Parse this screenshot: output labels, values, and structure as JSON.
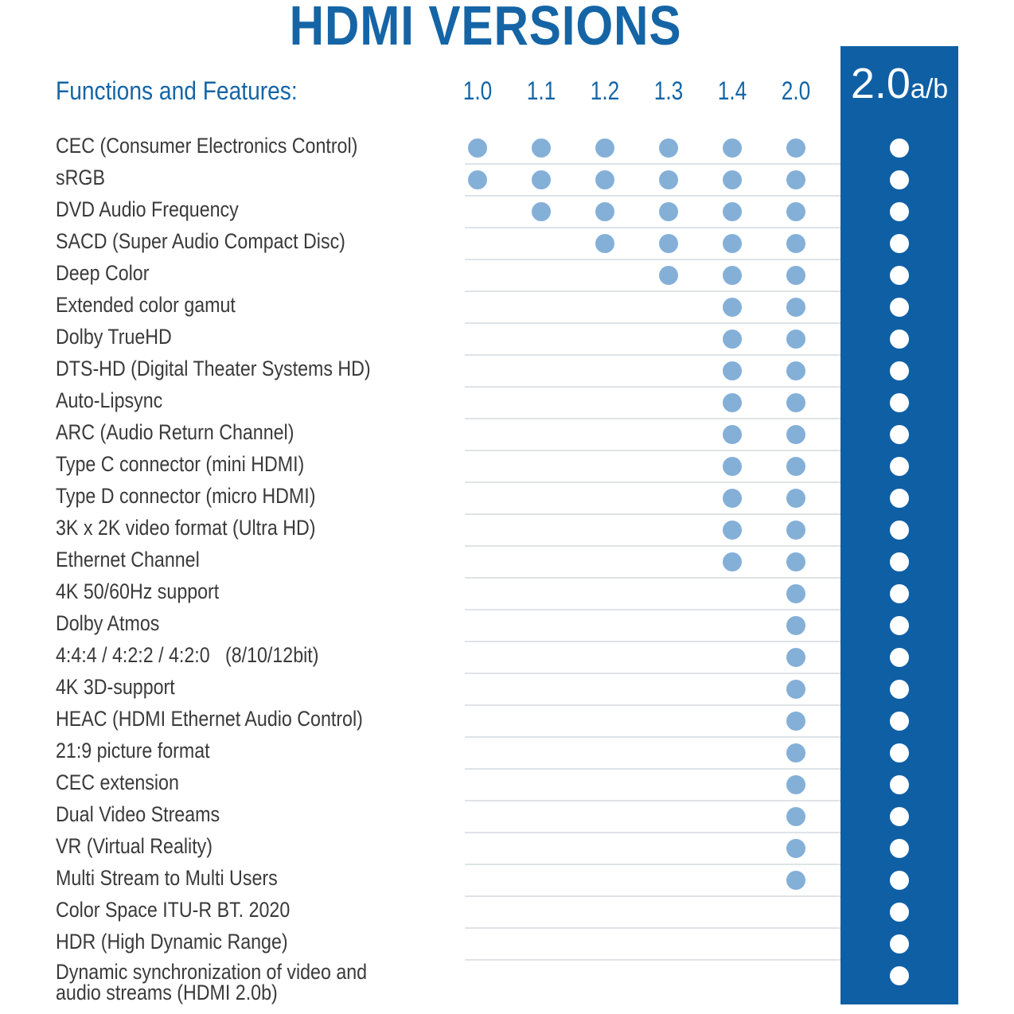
{
  "title": "HDMI VERSIONS",
  "chart_data": {
    "type": "table",
    "row_header": "Functions and Features:",
    "columns": [
      "1.0",
      "1.1",
      "1.2",
      "1.3",
      "1.4",
      "2.0",
      "2.0a/b"
    ],
    "highlight_column": {
      "main": "2.0",
      "suffix": "a/b"
    },
    "colors": {
      "accent": "#1565a6",
      "highlight_bg": "#0f5fa5",
      "dot": "#84b0d8",
      "dot_highlight": "#ffffff"
    },
    "rows": [
      {
        "feature": "CEC (Consumer Electronics Control)",
        "since": "1.0"
      },
      {
        "feature": "sRGB",
        "since": "1.0"
      },
      {
        "feature": "DVD Audio Frequency",
        "since": "1.1"
      },
      {
        "feature": "SACD (Super Audio Compact Disc)",
        "since": "1.2"
      },
      {
        "feature": "Deep Color",
        "since": "1.3"
      },
      {
        "feature": "Extended color gamut",
        "since": "1.4"
      },
      {
        "feature": "Dolby TrueHD",
        "since": "1.4"
      },
      {
        "feature": "DTS-HD (Digital Theater Systems HD)",
        "since": "1.4"
      },
      {
        "feature": "Auto-Lipsync",
        "since": "1.4"
      },
      {
        "feature": "ARC (Audio Return Channel)",
        "since": "1.4"
      },
      {
        "feature": "Type C connector (mini HDMI)",
        "since": "1.4"
      },
      {
        "feature": "Type D connector (micro HDMI)",
        "since": "1.4"
      },
      {
        "feature": "3K x 2K video format (Ultra HD)",
        "since": "1.4"
      },
      {
        "feature": "Ethernet Channel",
        "since": "1.4"
      },
      {
        "feature": "4K 50/60Hz support",
        "since": "2.0"
      },
      {
        "feature": "Dolby Atmos",
        "since": "2.0"
      },
      {
        "feature": "4:4:4 / 4:2:2 / 4:2:0   (8/10/12bit)",
        "since": "2.0"
      },
      {
        "feature": "4K 3D-support",
        "since": "2.0"
      },
      {
        "feature": "HEAC (HDMI Ethernet Audio Control)",
        "since": "2.0"
      },
      {
        "feature": "21:9 picture format",
        "since": "2.0"
      },
      {
        "feature": "CEC extension",
        "since": "2.0"
      },
      {
        "feature": "Dual Video Streams",
        "since": "2.0"
      },
      {
        "feature": "VR (Virtual Reality)",
        "since": "2.0"
      },
      {
        "feature": "Multi Stream to Multi Users",
        "since": "2.0"
      },
      {
        "feature": "Color Space ITU-R BT. 2020",
        "since": "2.0a/b"
      },
      {
        "feature": "HDR (High Dynamic Range)",
        "since": "2.0a/b"
      },
      {
        "feature": "Dynamic synchronization of video and audio streams (HDMI 2.0b)",
        "since": "2.0a/b"
      }
    ]
  }
}
